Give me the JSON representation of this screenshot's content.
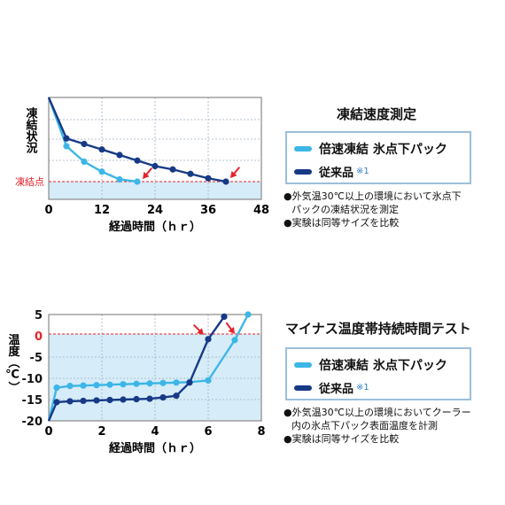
{
  "colors": {
    "fast": "#3cb6e6",
    "conv": "#163a86",
    "arrow": "#e4232b",
    "freeze_line": "#e4232b",
    "fill": "#d6ecf8",
    "grid": "#9db0c4"
  },
  "chart_data": [
    {
      "type": "line",
      "title": "凍結速度測定",
      "xlabel": "経過時間（ｈｒ）",
      "ylabel": "凍結状況",
      "xlim": [
        0,
        48
      ],
      "xticks": [
        "0",
        "12",
        "24",
        "36",
        "48"
      ],
      "freeze_label": "凍結点",
      "series": [
        {
          "name": "倍速凍結 氷点下パック",
          "color": "fast",
          "x": [
            0,
            4,
            8,
            12,
            16,
            20
          ],
          "y": [
            100,
            56,
            42,
            33,
            26,
            24
          ]
        },
        {
          "name": "従来品",
          "note": "※1",
          "color": "conv",
          "x": [
            0,
            4,
            8,
            12,
            16,
            20,
            24,
            28,
            32,
            36,
            40
          ],
          "y": [
            100,
            63,
            58,
            53,
            48,
            43,
            38,
            35,
            31,
            27,
            24
          ]
        }
      ],
      "grid": true
    },
    {
      "type": "line",
      "title": "マイナス温度帯持続時間テスト",
      "xlabel": "経過時間（ｈｒ）",
      "ylabel": "温度（℃）",
      "xlim": [
        0,
        8
      ],
      "ylim": [
        -20,
        5
      ],
      "xticks": [
        "0",
        "2",
        "4",
        "6",
        "8"
      ],
      "yticks": [
        "5",
        "0",
        "-5",
        "-10",
        "-15",
        "-20"
      ],
      "series": [
        {
          "name": "倍速凍結 氷点下パック",
          "color": "fast",
          "x": [
            0,
            0.3,
            0.8,
            1.3,
            1.8,
            2.3,
            2.8,
            3.3,
            3.8,
            4.3,
            4.8,
            5.3,
            6.0,
            7.0,
            7.5
          ],
          "y": [
            -20,
            -12.2,
            -11.8,
            -11.7,
            -11.6,
            -11.5,
            -11.4,
            -11.3,
            -11.2,
            -11.1,
            -11.0,
            -10.9,
            -10.5,
            -1.0,
            5
          ]
        },
        {
          "name": "従来品",
          "note": "※1",
          "color": "conv",
          "x": [
            0,
            0.3,
            0.8,
            1.3,
            1.8,
            2.3,
            2.8,
            3.3,
            3.8,
            4.3,
            4.8,
            5.3,
            6.0,
            6.6
          ],
          "y": [
            -20,
            -15.6,
            -15.4,
            -15.3,
            -15.2,
            -15.1,
            -15.0,
            -14.9,
            -14.8,
            -14.5,
            -14.1,
            -11.0,
            -0.8,
            4.5
          ]
        }
      ],
      "grid": true
    }
  ],
  "panel1": {
    "title": "凍結速度測定",
    "legend": {
      "fast": "倍速凍結 氷点下パック",
      "conv": "従来品",
      "note": "※1"
    },
    "notes": [
      "●外気温30℃以上の環境において氷点下",
      "パックの凍結状況を測定",
      "●実験は同等サイズを比較"
    ]
  },
  "panel2": {
    "title": "マイナス温度帯持続時間テスト",
    "legend": {
      "fast": "倍速凍結 氷点下パック",
      "conv": "従来品",
      "note": "※1"
    },
    "notes": [
      "●外気温30℃以上の環境においてクーラー",
      "内の氷点下パック表面温度を計測",
      "●実験は同等サイズを比較"
    ]
  }
}
